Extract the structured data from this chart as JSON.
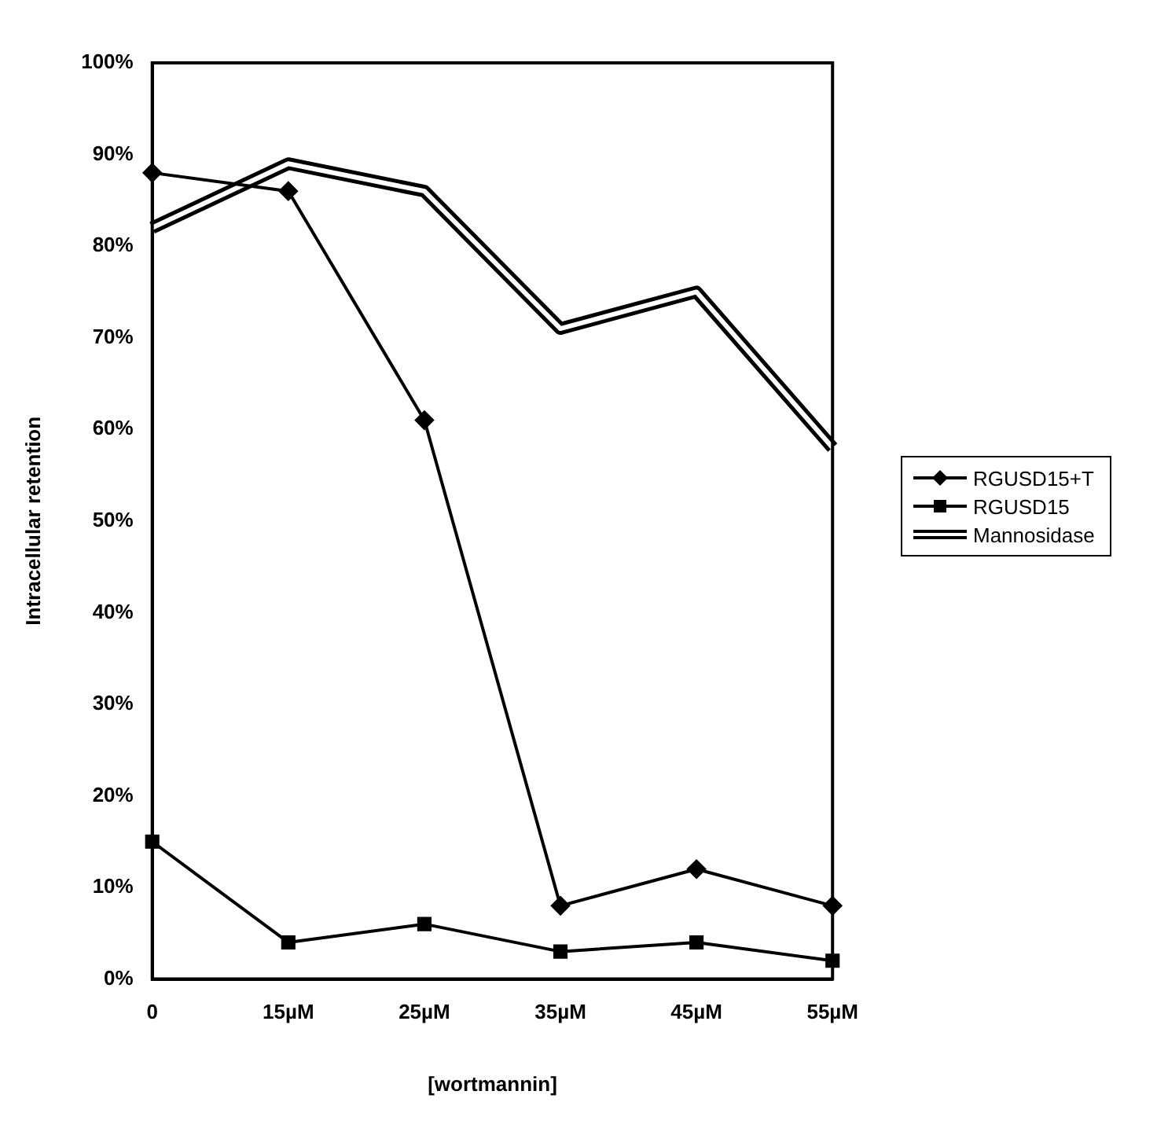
{
  "chart_data": {
    "type": "line",
    "xlabel": "[wortmannin]",
    "ylabel": "Intracellular retention",
    "categories": [
      "0",
      "15µM",
      "25µM",
      "35µM",
      "45µM",
      "55µM"
    ],
    "series": [
      {
        "name": "RGUSD15+T",
        "color": "#000000",
        "marker": "diamond",
        "values": [
          88,
          86,
          61,
          8,
          12,
          8
        ]
      },
      {
        "name": "RGUSD15",
        "color": "#000000",
        "marker": "square",
        "values": [
          15,
          4,
          6,
          3,
          4,
          2
        ]
      },
      {
        "name": "Mannosidase",
        "color": "#000000",
        "marker": "none",
        "values": [
          82,
          89,
          86,
          71,
          75,
          58
        ]
      }
    ],
    "ylim": [
      0,
      100
    ],
    "yticks": [
      {
        "value": 0,
        "label": "0%"
      },
      {
        "value": 10,
        "label": "10%"
      },
      {
        "value": 20,
        "label": "20%"
      },
      {
        "value": 30,
        "label": "30%"
      },
      {
        "value": 40,
        "label": "40%"
      },
      {
        "value": 50,
        "label": "50%"
      },
      {
        "value": 60,
        "label": "60%"
      },
      {
        "value": 70,
        "label": "70%"
      },
      {
        "value": 80,
        "label": "80%"
      },
      {
        "value": 90,
        "label": "90%"
      },
      {
        "value": 100,
        "label": "100%"
      }
    ],
    "grid": false,
    "legend": "right",
    "line_style": "solid"
  }
}
